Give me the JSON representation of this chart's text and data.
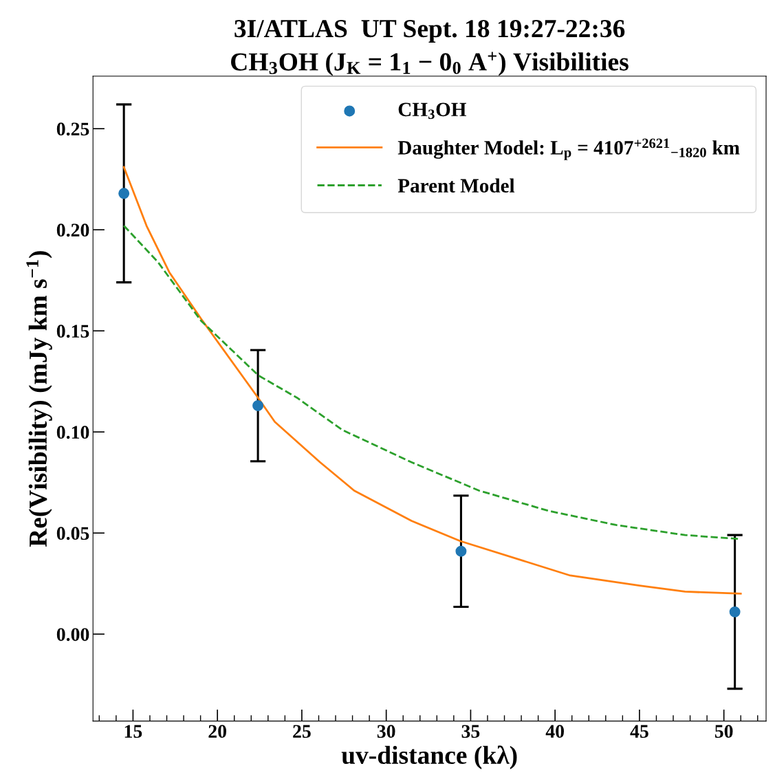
{
  "chart_data": {
    "type": "scatter",
    "title": "3I/ATLAS  UT Sept. 18 19:27-22:36\nCH$_{3}$OH (J$_{K}$ = 1$_{1}$ − 0$_{0}$ A$^{+}$) Visibilities",
    "xlabel": "uv-distance (kλ)",
    "ylabel": "Re(Visibility) (mJy km s$^{−1}$)",
    "series": [
      {
        "name": "CH$_{3}$OH",
        "color": "#1f77b4",
        "marker": "circle",
        "x": [
          14.46,
          22.4,
          34.43,
          50.65
        ],
        "values": [
          0.218,
          0.113,
          0.041,
          0.011
        ],
        "errors": [
          0.044,
          0.0275,
          0.0275,
          0.038
        ]
      },
      {
        "name": "Daughter Model: L$_{p}$ = 4107$^{+2621}$$_{−1820}$ km",
        "type": "line",
        "color": "#ff7f0e",
        "line_style": "solid",
        "x": [
          14.46,
          15.8,
          17.15,
          19.03,
          22.4,
          23.4,
          26.08,
          28.1,
          31.5,
          34.4,
          40.9,
          45.0,
          47.7,
          51.0
        ],
        "values": [
          0.231,
          0.202,
          0.179,
          0.156,
          0.117,
          0.105,
          0.085,
          0.071,
          0.056,
          0.046,
          0.029,
          0.024,
          0.021,
          0.02
        ]
      },
      {
        "name": "Parent Model",
        "type": "line",
        "color": "#2ca02c",
        "line_style": "dashed",
        "x": [
          14.46,
          16.48,
          19.03,
          22.42,
          24.7,
          27.4,
          31.5,
          35.5,
          39.6,
          43.6,
          47.7,
          51.0
        ],
        "values": [
          0.202,
          0.184,
          0.155,
          0.128,
          0.117,
          0.101,
          0.085,
          0.071,
          0.061,
          0.054,
          0.049,
          0.047
        ]
      }
    ],
    "xlim": [
      12.63,
      52.5
    ],
    "xticks": [
      15,
      20,
      25,
      30,
      35,
      40,
      45,
      50
    ],
    "ylim": [
      -0.043,
      0.276
    ],
    "yticks": [
      {
        "value": 0,
        "label": "0.00"
      },
      {
        "value": 0.05,
        "label": "0.05"
      },
      {
        "value": 0.1,
        "label": "0.10"
      },
      {
        "value": 0.15,
        "label": "0.15"
      },
      {
        "value": 0.2,
        "label": "0.20"
      },
      {
        "value": 0.25,
        "label": "0.25"
      }
    ],
    "grid": false,
    "legend": "top right"
  }
}
